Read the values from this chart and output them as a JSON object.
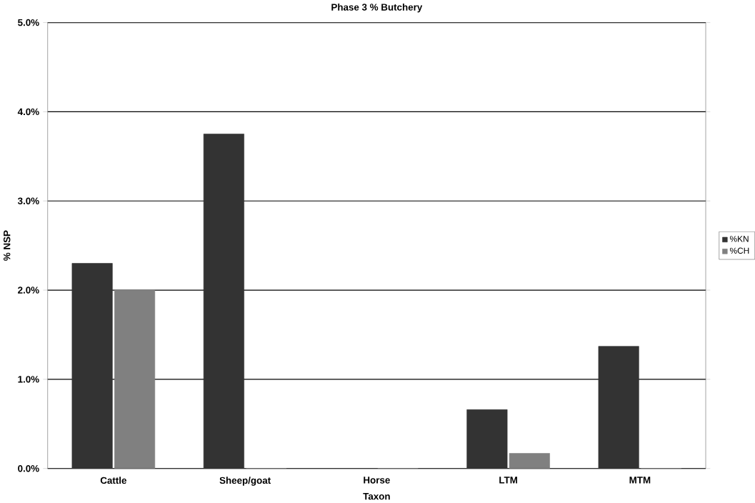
{
  "chart_data": {
    "type": "bar",
    "title": "Phase 3 % Butchery",
    "xlabel": "Taxon",
    "ylabel": "% NSP",
    "categories": [
      "Cattle",
      "Sheep/goat",
      "Horse",
      "LTM",
      "MTM"
    ],
    "series": [
      {
        "name": "%KN",
        "color": "#333333",
        "values": [
          2.3,
          3.75,
          0,
          0.66,
          1.37
        ]
      },
      {
        "name": "%CH",
        "color": "#808080",
        "values": [
          2.0,
          0,
          0,
          0.17,
          0
        ]
      }
    ],
    "ylim": [
      0,
      5
    ],
    "yticks": [
      {
        "value": 0,
        "label": "0.0%"
      },
      {
        "value": 1,
        "label": "1.0%"
      },
      {
        "value": 2,
        "label": "2.0%"
      },
      {
        "value": 3,
        "label": "3.0%"
      },
      {
        "value": 4,
        "label": "4.0%"
      },
      {
        "value": 5,
        "label": "5.0%"
      }
    ],
    "grid": "y",
    "legend": "right"
  }
}
